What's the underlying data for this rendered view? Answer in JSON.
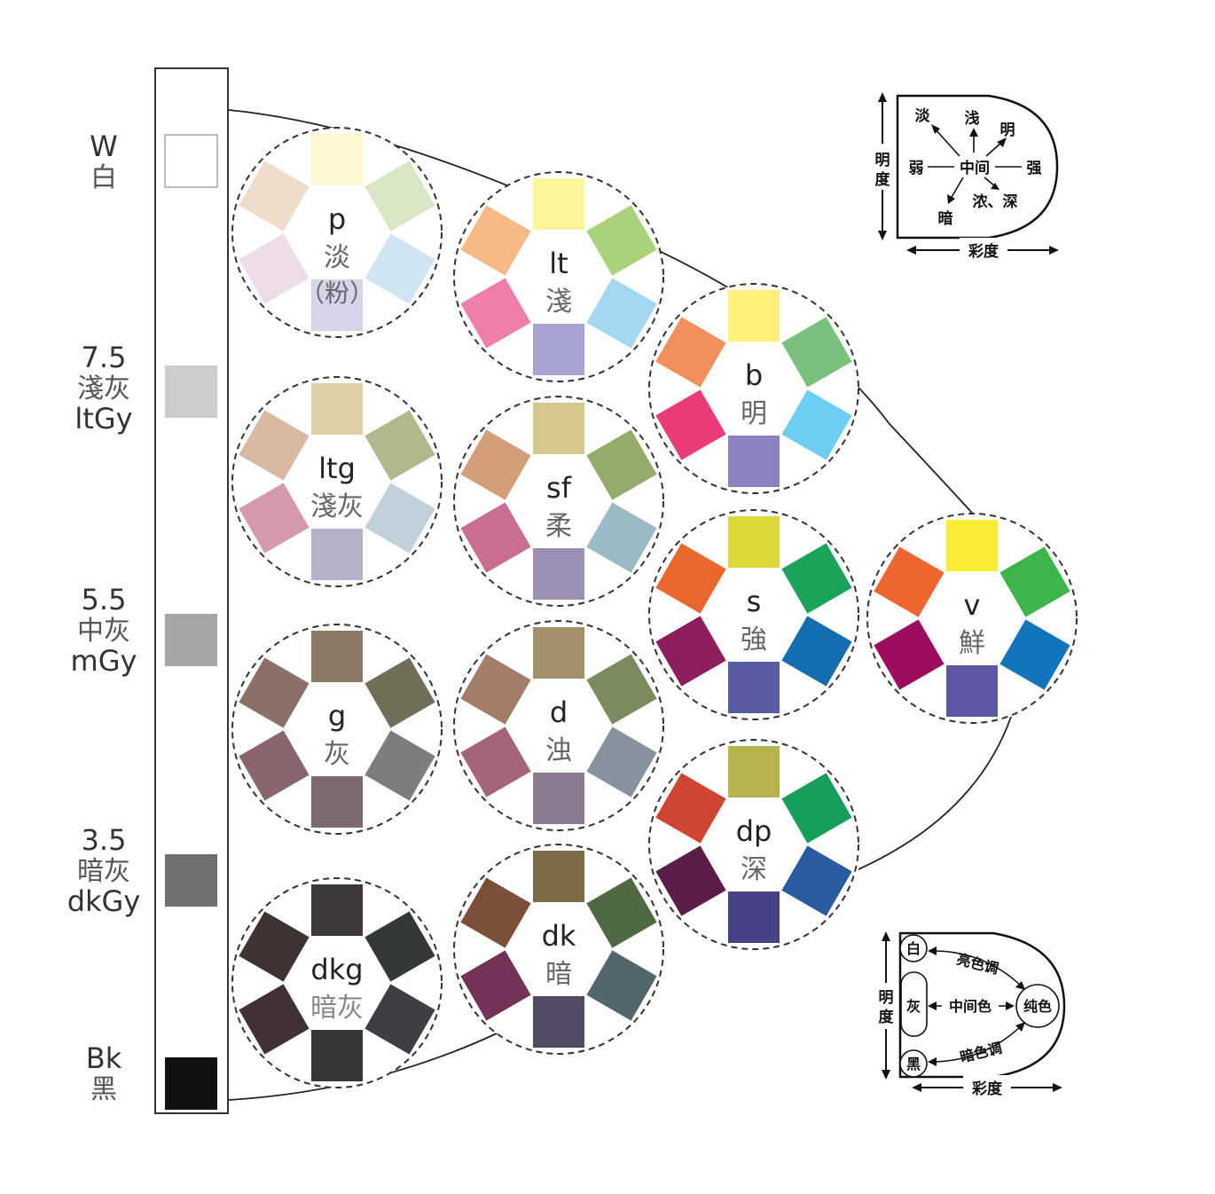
{
  "gray_scale": [
    {
      "id": "W",
      "top": "W",
      "zh": "白",
      "color": "#ffffff"
    },
    {
      "id": "ltGy",
      "top": "7.5",
      "zh": "淺灰",
      "en": "ltGy",
      "color": "#cccccc"
    },
    {
      "id": "mGy",
      "top": "5.5",
      "zh": "中灰",
      "en": "mGy",
      "color": "#a6a6a6"
    },
    {
      "id": "dkGy",
      "top": "3.5",
      "zh": "暗灰",
      "en": "dkGy",
      "color": "#707070"
    },
    {
      "id": "Bk",
      "top": "Bk",
      "zh": "黑",
      "color": "#111111"
    }
  ],
  "tone_wheels": [
    {
      "code": "p",
      "name": "淡",
      "sub": "（粉）",
      "colors": [
        "#fdf8d2",
        "#d9e6c4",
        "#cfe6f2",
        "#d6d4e8",
        "#ecdde8",
        "#f0dccb"
      ]
    },
    {
      "code": "lt",
      "name": "淺",
      "colors": [
        "#fdf59a",
        "#a9d27a",
        "#a4d8f1",
        "#a5a4d2",
        "#ed7fa8",
        "#f7b986"
      ]
    },
    {
      "code": "b",
      "name": "明",
      "colors": [
        "#fdf17a",
        "#7ac17b",
        "#6ecdf2",
        "#8b83c0",
        "#ea3a78",
        "#f28f5a"
      ]
    },
    {
      "code": "ltg",
      "name": "淺灰",
      "colors": [
        "#ded0a5",
        "#b0b98c",
        "#c1d1d9",
        "#b6b1c8",
        "#d49aab",
        "#d9b9a1"
      ]
    },
    {
      "code": "sf",
      "name": "柔",
      "colors": [
        "#d6c88a",
        "#94ab6c",
        "#9cbac6",
        "#9c90b4",
        "#c96e90",
        "#d49e78"
      ]
    },
    {
      "code": "s",
      "name": "強",
      "colors": [
        "#ddd83a",
        "#19a45a",
        "#136daf",
        "#575ba1",
        "#8d1d5b",
        "#e9662c"
      ]
    },
    {
      "code": "v",
      "name": "鮮",
      "colors": [
        "#fbec35",
        "#3bb44a",
        "#1175bb",
        "#5e57a4",
        "#9c0d5d",
        "#ee6530"
      ]
    },
    {
      "code": "g",
      "name": "灰",
      "colors": [
        "#8b7a67",
        "#716e58",
        "#7e7c7c",
        "#7d6a73",
        "#8a656d",
        "#8b7068"
      ]
    },
    {
      "code": "d",
      "name": "浊",
      "colors": [
        "#a3916a",
        "#7a8c5d",
        "#86939c",
        "#8a7b8e",
        "#a36577",
        "#a47d68"
      ]
    },
    {
      "code": "dp",
      "name": "深",
      "colors": [
        "#b4b44a",
        "#169e5b",
        "#2a5a9f",
        "#474287",
        "#5a1d48",
        "#cf4433"
      ]
    },
    {
      "code": "dkg",
      "name": "暗灰",
      "colors": [
        "#3e3838",
        "#343938",
        "#3f3f43",
        "#383637",
        "#413036",
        "#3e3332"
      ]
    },
    {
      "code": "dk",
      "name": "暗",
      "colors": [
        "#7d6b46",
        "#4f6a43",
        "#52676c",
        "#534b65",
        "#733356",
        "#7c5038"
      ]
    }
  ],
  "legend_top": {
    "vertical": "明度",
    "horizontal": "彩度",
    "center": "中间",
    "weak": "弱",
    "strong": "强",
    "pale": "淡",
    "light": "浅",
    "bright": "明",
    "dark": "暗",
    "deep": "浓、深"
  },
  "legend_bottom": {
    "vertical": "明度",
    "horizontal": "彩度",
    "white": "白",
    "gray": "灰",
    "black": "黑",
    "pure": "纯色",
    "tint": "亮色调",
    "mid": "中间色",
    "shade": "暗色调"
  }
}
